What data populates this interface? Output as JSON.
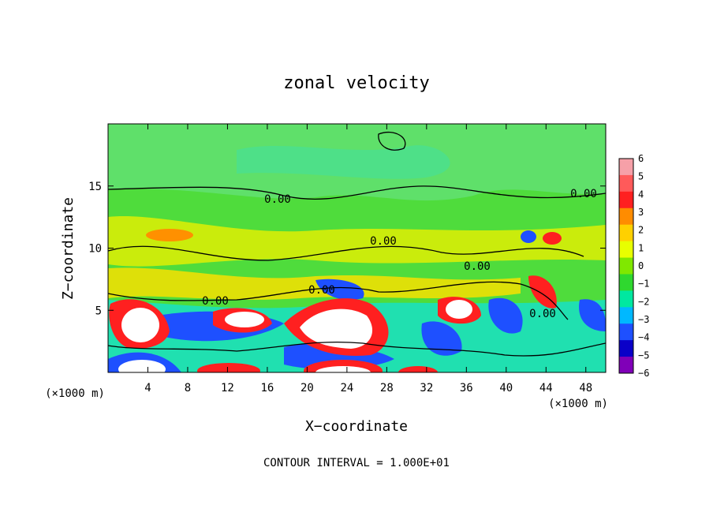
{
  "chart_data": {
    "type": "heatmap",
    "title": "zonal velocity",
    "xlabel": "X−coordinate",
    "ylabel": "Z−coordinate",
    "x_unit_left": "(×1000 m)",
    "x_unit_right": "(×1000 m)",
    "xlim": [
      0,
      50
    ],
    "ylim": [
      0,
      20
    ],
    "x_ticks": [
      "4",
      "8",
      "12",
      "16",
      "20",
      "24",
      "28",
      "32",
      "36",
      "40",
      "44",
      "48"
    ],
    "y_ticks": [
      "5",
      "10",
      "15"
    ],
    "x_tick_values": [
      4,
      8,
      12,
      16,
      20,
      24,
      28,
      32,
      36,
      40,
      44,
      48
    ],
    "y_tick_values": [
      5,
      10,
      15
    ],
    "contour_labels": [
      "0.00",
      "0.00",
      "0.00",
      "0.00",
      "0.00",
      "0.00",
      "0.00"
    ],
    "contour_interval_text": "CONTOUR INTERVAL = 1.000E+01",
    "colorbar": {
      "labels": [
        "6",
        "5",
        "4",
        "3",
        "2",
        "1",
        "0",
        "−1",
        "−2",
        "−3",
        "−4",
        "−5",
        "−6"
      ],
      "values": [
        6,
        5,
        4,
        3,
        2,
        1,
        0,
        -1,
        -2,
        -3,
        -4,
        -5,
        -6
      ],
      "colors": [
        "#f6a0a8",
        "#ff5a5a",
        "#ff2020",
        "#ff8c00",
        "#ffd000",
        "#e8ff00",
        "#80e800",
        "#2fd82f",
        "#00e8a0",
        "#00b8ff",
        "#1e50ff",
        "#0a00c8",
        "#8000b8"
      ]
    }
  }
}
